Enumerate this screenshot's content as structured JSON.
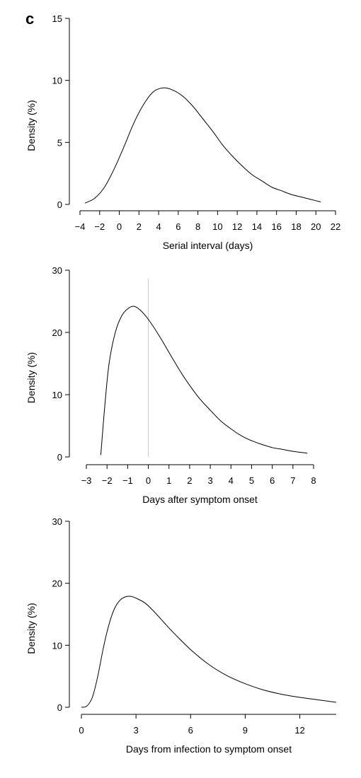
{
  "panel_label": "c",
  "colors": {
    "curve": "#000000",
    "axis": "#000000",
    "reference_line": "#c8c8c8"
  },
  "chart_data": [
    {
      "type": "line",
      "xlabel": "Serial interval (days)",
      "ylabel": "Density (%)",
      "xlim": [
        -4,
        22
      ],
      "ylim": [
        0,
        15
      ],
      "xticks": [
        "−4",
        "−2",
        "0",
        "2",
        "4",
        "6",
        "8",
        "10",
        "12",
        "14",
        "16",
        "18",
        "20",
        "22"
      ],
      "yticks": [
        "0",
        "5",
        "10",
        "15"
      ],
      "series": [
        {
          "x": [
            -3.5,
            -2.5,
            -1.5,
            -0.5,
            0.5,
            1.5,
            2.5,
            3.5,
            4.5,
            5.5,
            6.5,
            7.5,
            8.5,
            9.5,
            10.5,
            11.5,
            12.5,
            13.5,
            14.5,
            15.5,
            16.5,
            17.5,
            18.5,
            19.5,
            20.5
          ],
          "y": [
            0.1,
            0.5,
            1.4,
            2.9,
            4.7,
            6.6,
            8.1,
            9.1,
            9.4,
            9.2,
            8.7,
            7.9,
            6.9,
            5.9,
            4.8,
            3.9,
            3.1,
            2.4,
            1.9,
            1.4,
            1.1,
            0.8,
            0.6,
            0.4,
            0.2
          ]
        }
      ]
    },
    {
      "type": "line",
      "xlabel": "Days after symptom onset",
      "ylabel": "Density (%)",
      "xlim": [
        -3,
        8
      ],
      "ylim": [
        0,
        30
      ],
      "xticks": [
        "−3",
        "−2",
        "−1",
        "0",
        "1",
        "2",
        "3",
        "4",
        "5",
        "6",
        "7",
        "8"
      ],
      "yticks": [
        "0",
        "10",
        "20",
        "30"
      ],
      "reference_line_x": 0,
      "series": [
        {
          "x": [
            -2.3,
            -2.1,
            -1.9,
            -1.6,
            -1.3,
            -1.0,
            -0.7,
            -0.4,
            0,
            0.5,
            1.0,
            1.5,
            2.0,
            2.5,
            3.0,
            3.5,
            4.0,
            4.5,
            5.0,
            5.5,
            6.0,
            6.5,
            7.0,
            7.7
          ],
          "y": [
            0.3,
            8.5,
            15.0,
            20.0,
            22.6,
            23.8,
            24.2,
            23.6,
            22.1,
            19.6,
            16.8,
            14.0,
            11.5,
            9.3,
            7.5,
            5.8,
            4.5,
            3.4,
            2.6,
            2.0,
            1.5,
            1.2,
            0.9,
            0.6
          ]
        }
      ]
    },
    {
      "type": "line",
      "xlabel": "Days from infection to symptom onset",
      "ylabel": "Density (%)",
      "xlim": [
        0,
        14
      ],
      "ylim": [
        0,
        30
      ],
      "xticks": [
        "0",
        "3",
        "6",
        "9",
        "12"
      ],
      "yticks": [
        "0",
        "10",
        "20",
        "30"
      ],
      "series": [
        {
          "x": [
            0,
            0.3,
            0.6,
            0.9,
            1.2,
            1.5,
            1.8,
            2.1,
            2.4,
            2.7,
            3.0,
            3.5,
            4.0,
            4.5,
            5.0,
            6.0,
            7.0,
            8.0,
            9.0,
            10.0,
            11.0,
            12.0,
            13.0,
            14.0
          ],
          "y": [
            0,
            0.2,
            1.6,
            5.0,
            9.5,
            13.2,
            15.8,
            17.2,
            17.8,
            17.9,
            17.6,
            16.8,
            15.4,
            13.8,
            12.2,
            9.3,
            6.9,
            5.1,
            3.8,
            2.8,
            2.1,
            1.6,
            1.2,
            0.8
          ]
        }
      ]
    }
  ]
}
